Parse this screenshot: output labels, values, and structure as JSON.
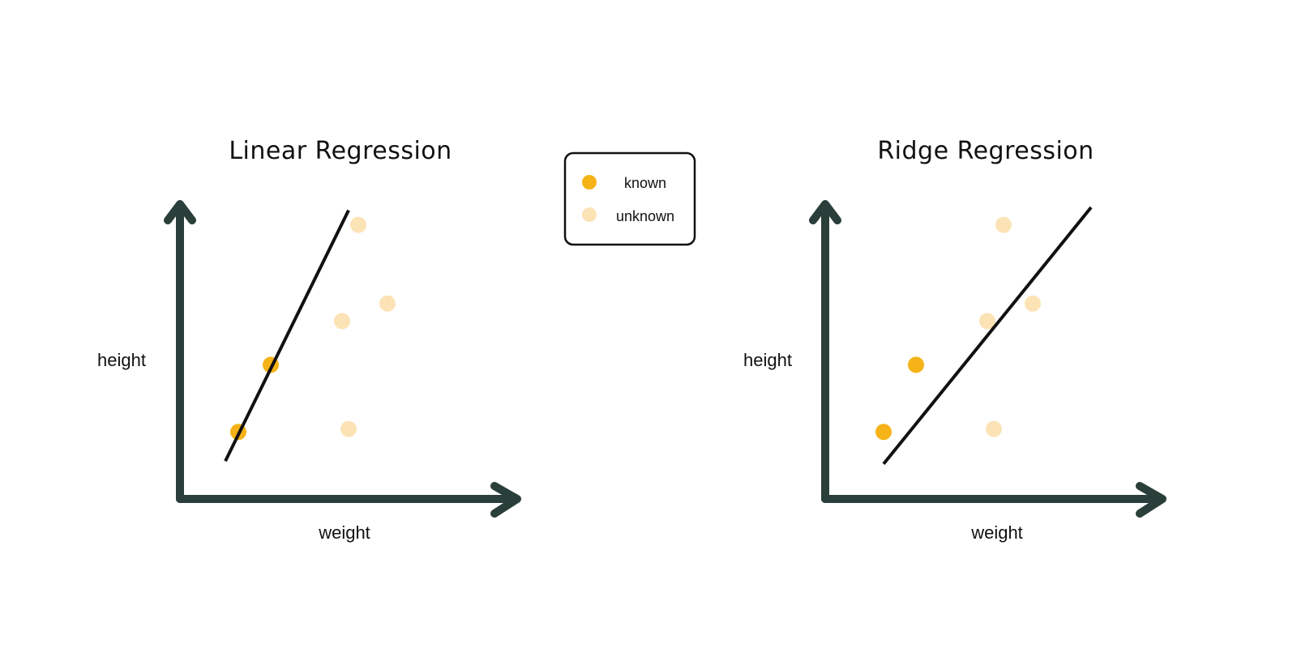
{
  "colors": {
    "known": "#F5B317",
    "unknown": "#FCE3B6",
    "axis": "#2B3F3A",
    "fit_line": "#111111"
  },
  "legend": {
    "known_label": "known",
    "unknown_label": "unknown"
  },
  "chart_data": [
    {
      "type": "scatter",
      "title": "Linear Regression",
      "xlabel": "weight",
      "ylabel": "height",
      "xlim": [
        0,
        10
      ],
      "ylim": [
        0,
        10
      ],
      "grid": false,
      "series": [
        {
          "name": "known",
          "points": [
            [
              1.8,
              2.3
            ],
            [
              2.8,
              4.6
            ]
          ]
        },
        {
          "name": "unknown",
          "points": [
            [
              5.0,
              6.1
            ],
            [
              5.2,
              2.4
            ],
            [
              5.5,
              9.4
            ],
            [
              6.4,
              6.7
            ]
          ]
        }
      ],
      "fit_line": {
        "x1": 1.4,
        "y1": 1.3,
        "x2": 5.2,
        "y2": 9.9
      }
    },
    {
      "type": "scatter",
      "title": "Ridge Regression",
      "xlabel": "weight",
      "ylabel": "height",
      "xlim": [
        0,
        10
      ],
      "ylim": [
        0,
        10
      ],
      "grid": false,
      "series": [
        {
          "name": "known",
          "points": [
            [
              1.8,
              2.3
            ],
            [
              2.8,
              4.6
            ]
          ]
        },
        {
          "name": "unknown",
          "points": [
            [
              5.0,
              6.1
            ],
            [
              5.2,
              2.4
            ],
            [
              5.5,
              9.4
            ],
            [
              6.4,
              6.7
            ]
          ]
        }
      ],
      "fit_line": {
        "x1": 1.8,
        "y1": 1.2,
        "x2": 8.2,
        "y2": 10.0
      }
    }
  ]
}
